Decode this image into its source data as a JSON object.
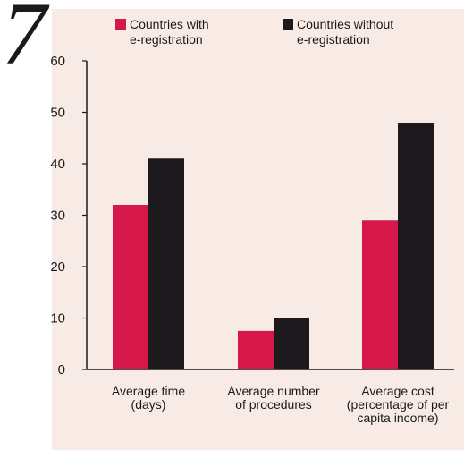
{
  "figure_number": "7",
  "colors": {
    "panel_bg": "#f8ebe6",
    "with": "#d6174a",
    "without": "#1c1a1c",
    "axis": "#1a1a1a"
  },
  "legend": [
    {
      "label_lines": [
        "Countries with",
        "e-registration"
      ]
    },
    {
      "label_lines": [
        "Countries without",
        "e-registration"
      ]
    }
  ],
  "chart_data": {
    "type": "bar",
    "categories": [
      [
        "Average time",
        "(days)"
      ],
      [
        "Average number",
        "of procedures"
      ],
      [
        "Average cost",
        "(percentage of per",
        "capita income)"
      ]
    ],
    "series": [
      {
        "name": "Countries with e-registration",
        "values": [
          32,
          7.5,
          29
        ]
      },
      {
        "name": "Countries without e-registration",
        "values": [
          41,
          10,
          48
        ]
      }
    ],
    "ylim": [
      0,
      60
    ],
    "yticks": [
      0,
      10,
      20,
      30,
      40,
      50,
      60
    ],
    "legend_position": "top",
    "grid": false
  }
}
